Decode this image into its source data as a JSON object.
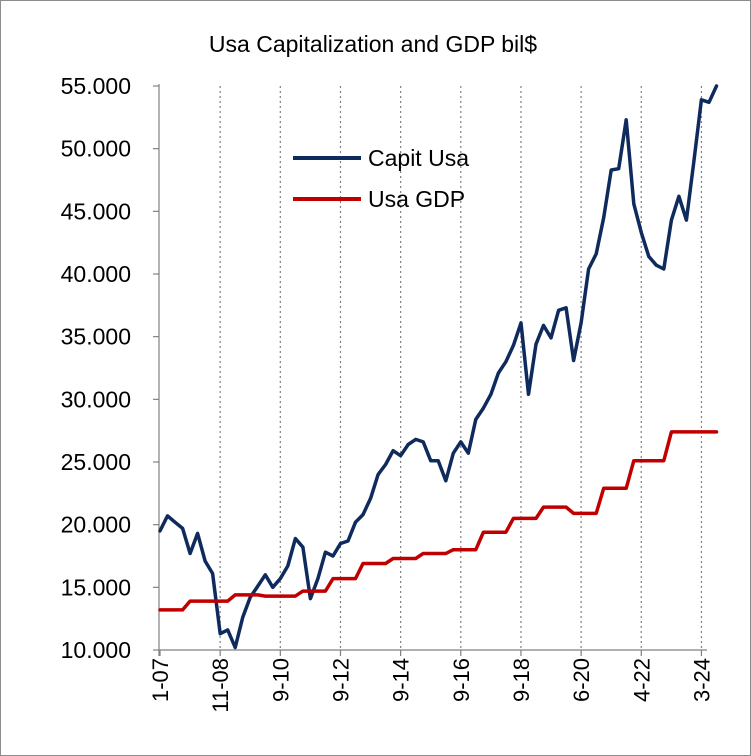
{
  "chart_data": {
    "type": "line",
    "title": "Usa Capitalization and GDP bil$",
    "xlabel": "",
    "ylabel": "",
    "ylim": [
      10000,
      55000
    ],
    "y_ticks": [
      "10.000",
      "15.000",
      "20.000",
      "25.000",
      "30.000",
      "35.000",
      "40.000",
      "45.000",
      "50.000",
      "55.000"
    ],
    "y_tick_values": [
      10000,
      15000,
      20000,
      25000,
      30000,
      35000,
      40000,
      45000,
      50000,
      55000
    ],
    "x_ticks": [
      "1-07",
      "11-08",
      "9-10",
      "9-12",
      "9-14",
      "9-16",
      "9-18",
      "6-20",
      "4-22",
      "3-24"
    ],
    "x_tick_index": [
      0,
      8,
      16,
      24,
      32,
      40,
      48,
      56,
      64,
      72
    ],
    "grid": "vertical dashed at x ticks",
    "legend": "upper-middle",
    "series": [
      {
        "name": "Capit Usa",
        "color": "#0f2a5c",
        "values": [
          19500,
          20700,
          20200,
          19700,
          17700,
          19300,
          17100,
          16100,
          11300,
          11600,
          10200,
          12600,
          14200,
          15100,
          16000,
          15000,
          15700,
          16700,
          18900,
          18200,
          14100,
          15700,
          17800,
          17500,
          18500,
          18700,
          20200,
          20800,
          22100,
          24000,
          24800,
          25900,
          25500,
          26400,
          26800,
          26600,
          25100,
          25100,
          23500,
          25700,
          26600,
          25700,
          28400,
          29300,
          30400,
          32100,
          33000,
          34300,
          36100,
          30400,
          34400,
          35900,
          34900,
          37100,
          37300,
          33100,
          36100,
          40400,
          41600,
          44500,
          48300,
          48400,
          52300,
          45600,
          43300,
          41400,
          40700,
          40400,
          44300,
          46200,
          44300,
          49000,
          53900,
          53700,
          55000
        ]
      },
      {
        "name": "Usa GDP",
        "color": "#c00000",
        "values": [
          13200,
          13200,
          13200,
          13200,
          13900,
          13900,
          13900,
          13900,
          13900,
          13900,
          14400,
          14400,
          14400,
          14400,
          14300,
          14300,
          14300,
          14300,
          14300,
          14700,
          14700,
          14700,
          14700,
          15700,
          15700,
          15700,
          15700,
          16900,
          16900,
          16900,
          16900,
          17300,
          17300,
          17300,
          17300,
          17700,
          17700,
          17700,
          17700,
          18000,
          18000,
          18000,
          18000,
          19400,
          19400,
          19400,
          19400,
          20500,
          20500,
          20500,
          20500,
          21400,
          21400,
          21400,
          21400,
          20900,
          20900,
          20900,
          20900,
          22900,
          22900,
          22900,
          22900,
          25100,
          25100,
          25100,
          25100,
          25100,
          27400,
          27400,
          27400,
          27400,
          27400,
          27400,
          27400
        ]
      }
    ]
  }
}
